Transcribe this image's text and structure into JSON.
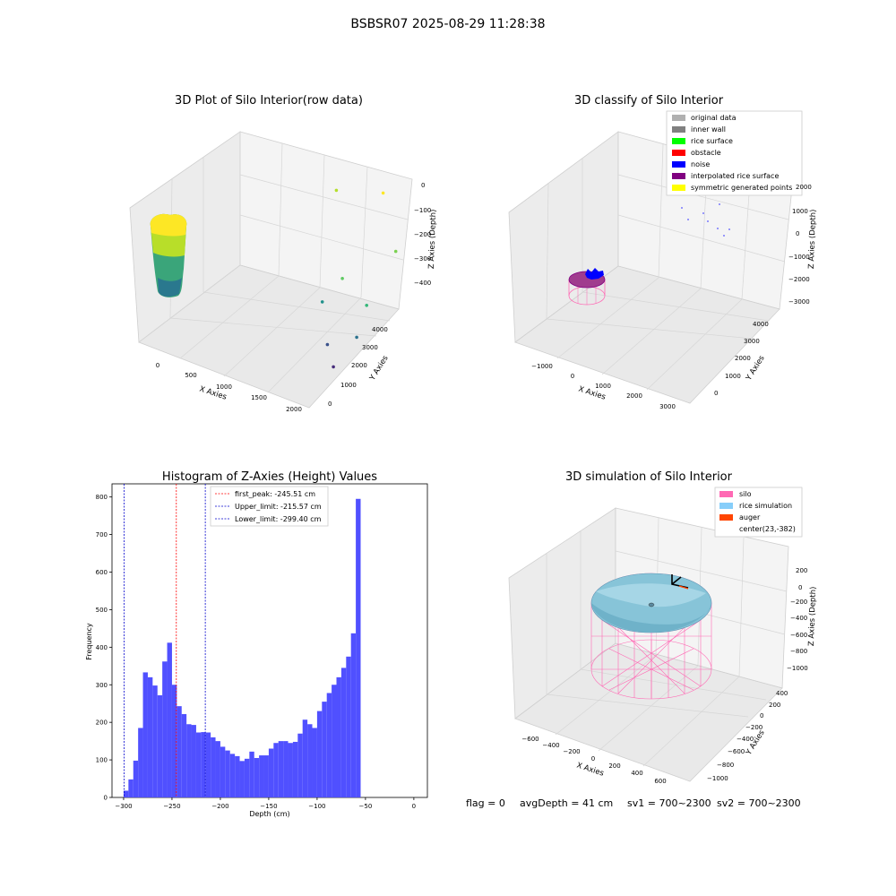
{
  "figure": {
    "title": "BSBSR07 2025-08-29 11:28:38",
    "status": {
      "flag": "flag = 0",
      "avg_depth": "avgDepth = 41 cm",
      "sv1": "sv1 = 700~2300",
      "sv2": "sv2 = 700~2300"
    }
  },
  "colors": {
    "hist_bar": "#5050ff",
    "first_peak": "#ff0000",
    "limit_line": "#0000cc",
    "silo_pink": "#ff69b4",
    "rice_sim": "#87cefa",
    "auger": "#ff4500",
    "noise": "#0000ee",
    "interp": "#800080",
    "pane": "#f2f2f2",
    "grid": "#d6d6d6"
  },
  "chart_data": [
    {
      "type": "scatter",
      "dimension": "3d",
      "title": "3D Plot of Silo Interior(row data)",
      "xlabel": "X Axies",
      "ylabel": "Y Axies",
      "zlabel": "Z Axies (Depth)",
      "xticks": [
        "0",
        "500",
        "1000",
        "1500",
        "2000"
      ],
      "yticks": [
        "0",
        "1000",
        "2000",
        "3000",
        "4000"
      ],
      "zticks": [
        "0",
        "−100",
        "−200",
        "−300",
        "−400"
      ],
      "colormap": "viridis",
      "description_points": [
        {
          "x": 1200,
          "y": 3900,
          "z": -40,
          "color": "#b4de2c"
        },
        {
          "x": 1700,
          "y": 4100,
          "z": -10,
          "color": "#fde725"
        },
        {
          "x": 2000,
          "y": 3600,
          "z": -140,
          "color": "#7ad151"
        },
        {
          "x": 1600,
          "y": 2800,
          "z": -220,
          "color": "#5ec962"
        },
        {
          "x": 1950,
          "y": 2600,
          "z": -260,
          "color": "#35b779"
        },
        {
          "x": 1300,
          "y": 3000,
          "z": -340,
          "color": "#21918c"
        },
        {
          "x": 1950,
          "y": 2200,
          "z": -340,
          "color": "#2c728e"
        },
        {
          "x": 1600,
          "y": 2200,
          "z": -400,
          "color": "#3b528b"
        },
        {
          "x": 1850,
          "y": 1600,
          "z": -410,
          "color": "#472d7b"
        }
      ]
    },
    {
      "type": "scatter",
      "dimension": "3d",
      "title": "3D classify of Silo Interior",
      "xlabel": "X Axies",
      "ylabel": "Y Axies",
      "zlabel": "Z Axies (Depth)",
      "xticks": [
        "−1000",
        "0",
        "1000",
        "2000",
        "3000"
      ],
      "yticks": [
        "0",
        "1000",
        "2000",
        "3000",
        "4000"
      ],
      "zticks": [
        "−3000",
        "−2000",
        "−1000",
        "0",
        "1000",
        "2000"
      ],
      "legend": [
        {
          "label": "original data",
          "color": "#b0b0b0"
        },
        {
          "label": "inner wall",
          "color": "#808080"
        },
        {
          "label": "rice surface",
          "color": "#00ff00"
        },
        {
          "label": "obstacle",
          "color": "#ff0000"
        },
        {
          "label": "noise",
          "color": "#0000ff"
        },
        {
          "label": "interpolated rice surface",
          "color": "#800080"
        },
        {
          "label": "symmetric generated points",
          "color": "#ffff00"
        }
      ]
    },
    {
      "type": "bar",
      "title": "Histogram of Z-Axies (Height) Values",
      "xlabel": "Depth (cm)",
      "ylabel": "Frequency",
      "xlim": [
        -312,
        14
      ],
      "ylim": [
        0,
        835
      ],
      "xticks": [
        -300,
        -250,
        -200,
        -150,
        -100,
        -50,
        0
      ],
      "yticks": [
        0,
        100,
        200,
        300,
        400,
        500,
        600,
        700,
        800
      ],
      "bin_start": -300,
      "bin_width": 5,
      "values": [
        18,
        48,
        98,
        185,
        333,
        320,
        298,
        272,
        362,
        412,
        300,
        243,
        222,
        195,
        193,
        173,
        174,
        173,
        160,
        150,
        135,
        125,
        116,
        110,
        97,
        103,
        122,
        105,
        112,
        112,
        130,
        145,
        150,
        150,
        145,
        148,
        170,
        207,
        195,
        185,
        230,
        255,
        278,
        300,
        320,
        345,
        375,
        437,
        795
      ],
      "lines": [
        {
          "label": "first_peak: -245.51 cm",
          "x": -245.51,
          "color": "#ff0000"
        },
        {
          "label": "Upper_limit: -215.57 cm",
          "x": -215.57,
          "color": "#0000cc"
        },
        {
          "label": "Lower_limit: -299.40 cm",
          "x": -299.4,
          "color": "#0000cc"
        }
      ]
    },
    {
      "type": "area",
      "dimension": "3d",
      "title": "3D simulation of Silo Interior",
      "xlabel": "X Axies",
      "ylabel": "Y Axies",
      "zlabel": "Z Axies (Depth)",
      "xticks": [
        "−600",
        "−400",
        "−200",
        "0",
        "200",
        "400",
        "600"
      ],
      "yticks": [
        "−1000",
        "−800",
        "−600",
        "−400",
        "−200",
        "0",
        "200",
        "400"
      ],
      "zticks": [
        "−1000",
        "−800",
        "−600",
        "−400",
        "−200",
        "0",
        "200"
      ],
      "legend": [
        {
          "label": "silo",
          "color": "#ff69b4"
        },
        {
          "label": "rice simulation",
          "color": "#87cefa"
        },
        {
          "label": "auger",
          "color": "#ff4500"
        },
        {
          "label": "center(23,-382)",
          "color": ""
        }
      ]
    }
  ]
}
